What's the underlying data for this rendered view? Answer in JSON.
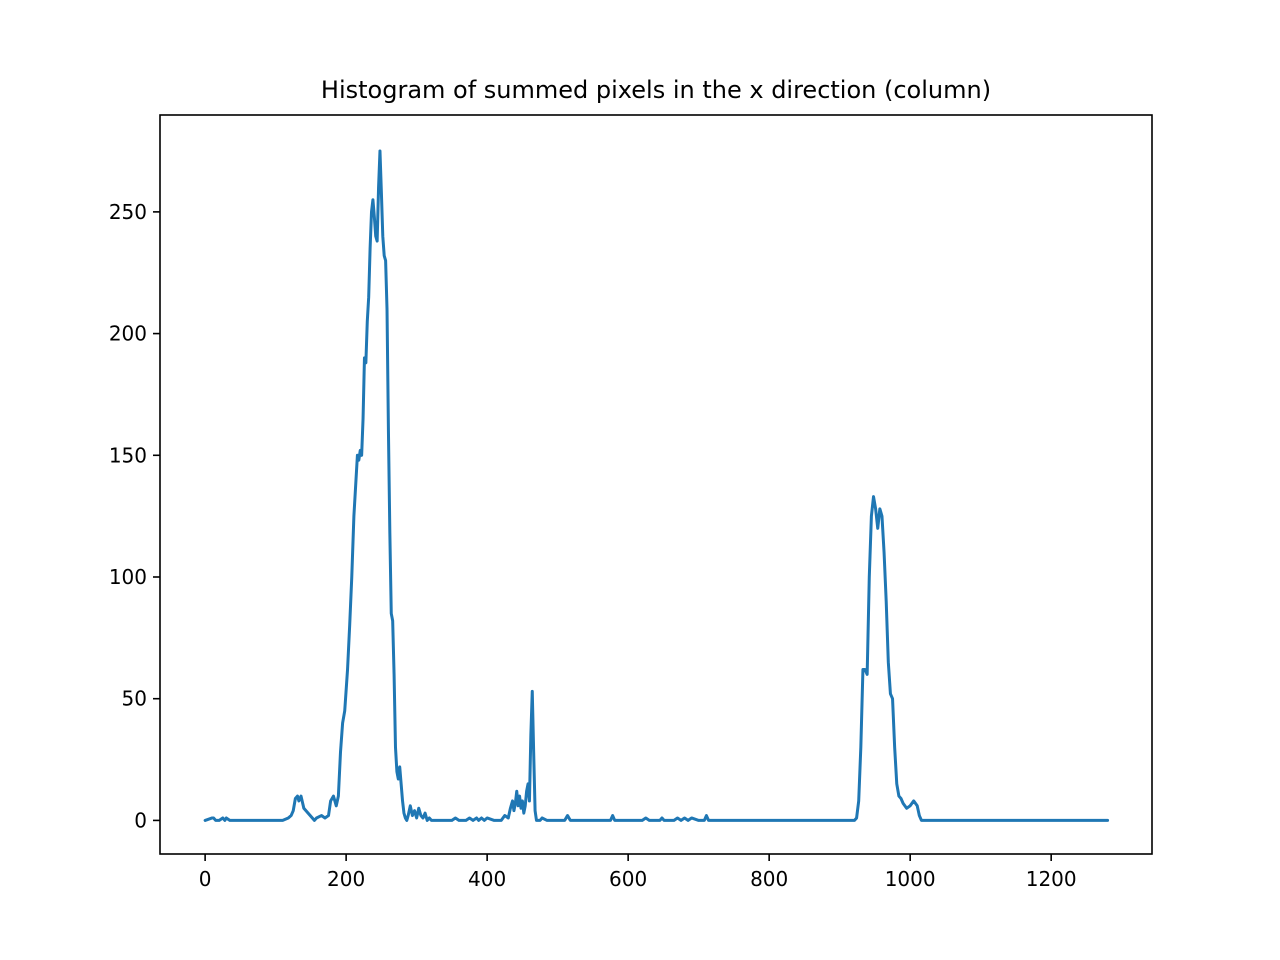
{
  "chart_data": {
    "type": "line",
    "title": "Histogram of summed pixels in the x direction (column)",
    "xlabel": "",
    "ylabel": "",
    "xlim": [
      -64,
      1343
    ],
    "ylim": [
      -13.8,
      289.8
    ],
    "xticks": [
      0,
      200,
      400,
      600,
      800,
      1000,
      1200
    ],
    "yticks": [
      0,
      50,
      100,
      150,
      200,
      250
    ],
    "grid": false,
    "legend": "none",
    "colors": {
      "series": "#1f77b4",
      "axes": "#000000",
      "background": "#ffffff"
    },
    "series": [
      {
        "x": [
          0,
          10,
          12,
          15,
          20,
          25,
          28,
          30,
          35,
          38,
          45,
          70,
          75,
          80,
          110,
          118,
          122,
          125,
          128,
          131,
          133,
          136,
          140,
          155,
          158,
          165,
          170,
          175,
          178,
          182,
          186,
          189,
          192,
          195,
          198,
          202,
          205,
          208,
          211,
          214,
          216,
          218,
          220,
          222,
          224,
          226,
          228,
          230,
          232,
          234,
          236,
          238,
          240,
          242,
          244,
          246,
          248,
          250,
          252,
          254,
          256,
          258,
          260,
          262,
          264,
          266,
          268,
          270,
          272,
          274,
          276,
          278,
          280,
          282,
          284,
          286,
          288,
          291,
          294,
          297,
          300,
          303,
          306,
          309,
          312,
          315,
          318,
          321,
          324,
          330,
          340,
          350,
          355,
          360,
          370,
          375,
          380,
          385,
          388,
          392,
          396,
          400,
          410,
          420,
          425,
          430,
          433,
          436,
          438,
          440,
          442,
          444,
          446,
          448,
          450,
          452,
          454,
          456,
          458,
          460,
          462,
          464,
          466,
          468,
          470,
          472,
          475,
          478,
          485,
          488,
          495,
          510,
          514,
          518,
          525,
          575,
          578,
          581,
          590,
          620,
          625,
          630,
          645,
          648,
          651,
          665,
          670,
          675,
          680,
          685,
          690,
          700,
          708,
          711,
          714,
          720,
          730,
          800,
          915,
          918,
          921,
          924,
          927,
          930,
          933,
          936,
          939,
          942,
          945,
          948,
          951,
          954,
          957,
          960,
          963,
          966,
          969,
          972,
          975,
          978,
          981,
          984,
          987,
          990,
          995,
          1000,
          1005,
          1010,
          1013,
          1016,
          1020,
          1030,
          1100,
          1200,
          1280
        ],
        "y": [
          0,
          1,
          1,
          0,
          0,
          1,
          0,
          1,
          0,
          0,
          0,
          0,
          0,
          0,
          0,
          1,
          2,
          4,
          9,
          10,
          8,
          10,
          5,
          0,
          1,
          2,
          1,
          2,
          8,
          10,
          6,
          10,
          28,
          40,
          45,
          62,
          80,
          100,
          125,
          140,
          150,
          148,
          152,
          150,
          165,
          190,
          188,
          205,
          215,
          235,
          250,
          255,
          248,
          240,
          238,
          260,
          275,
          258,
          240,
          232,
          230,
          210,
          160,
          118,
          85,
          82,
          60,
          30,
          20,
          17,
          22,
          15,
          8,
          3,
          1,
          0,
          2,
          6,
          2,
          4,
          1,
          5,
          2,
          1,
          3,
          0,
          1,
          0,
          0,
          0,
          0,
          0,
          1,
          0,
          0,
          1,
          0,
          1,
          0,
          1,
          0,
          1,
          0,
          0,
          2,
          1,
          5,
          8,
          4,
          7,
          12,
          6,
          10,
          5,
          8,
          3,
          6,
          12,
          15,
          8,
          35,
          53,
          28,
          4,
          0,
          0,
          0,
          1,
          0,
          0,
          0,
          0,
          2,
          0,
          0,
          0,
          2,
          0,
          0,
          0,
          1,
          0,
          0,
          1,
          0,
          0,
          1,
          0,
          1,
          0,
          1,
          0,
          0,
          2,
          0,
          0,
          0,
          0,
          0,
          0,
          0,
          1,
          8,
          30,
          62,
          62,
          60,
          100,
          125,
          133,
          128,
          120,
          128,
          125,
          110,
          90,
          65,
          52,
          50,
          30,
          15,
          10,
          9,
          7,
          5,
          6,
          8,
          6,
          2,
          0,
          0,
          0,
          0,
          0,
          0
        ]
      }
    ]
  }
}
